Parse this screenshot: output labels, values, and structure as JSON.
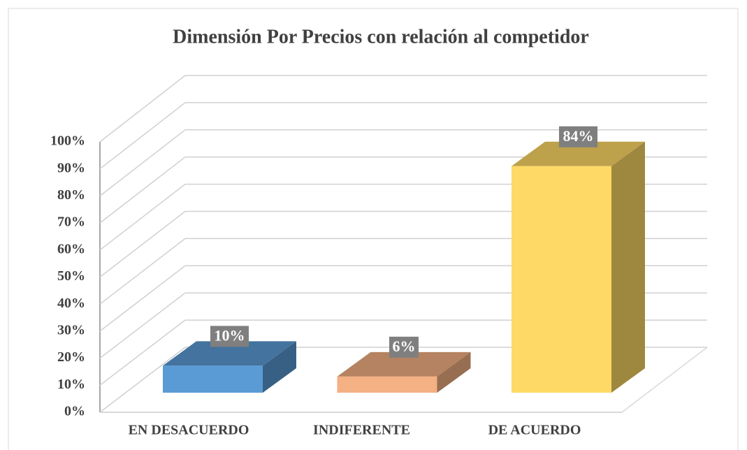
{
  "chart_data": {
    "type": "bar3d",
    "title": "Dimensión Por Precios con relación al competidor",
    "categories": [
      "EN DESACUERDO",
      "INDIFERENTE",
      "DE ACUERDO"
    ],
    "values": [
      10,
      6,
      84
    ],
    "value_labels": [
      "10%",
      "6%",
      "84%"
    ],
    "colors": [
      "#5b9bd5",
      "#f4b183",
      "#ffd966"
    ],
    "ylim": [
      0,
      100
    ],
    "yticks": [
      {
        "value": 0,
        "label": "0%"
      },
      {
        "value": 10,
        "label": "10%"
      },
      {
        "value": 20,
        "label": "20%"
      },
      {
        "value": 30,
        "label": "30%"
      },
      {
        "value": 40,
        "label": "40%"
      },
      {
        "value": 50,
        "label": "50%"
      },
      {
        "value": 60,
        "label": "60%"
      },
      {
        "value": 70,
        "label": "70%"
      },
      {
        "value": 80,
        "label": "80%"
      },
      {
        "value": 90,
        "label": "90%"
      },
      {
        "value": 100,
        "label": "100%"
      }
    ],
    "grid": true
  }
}
